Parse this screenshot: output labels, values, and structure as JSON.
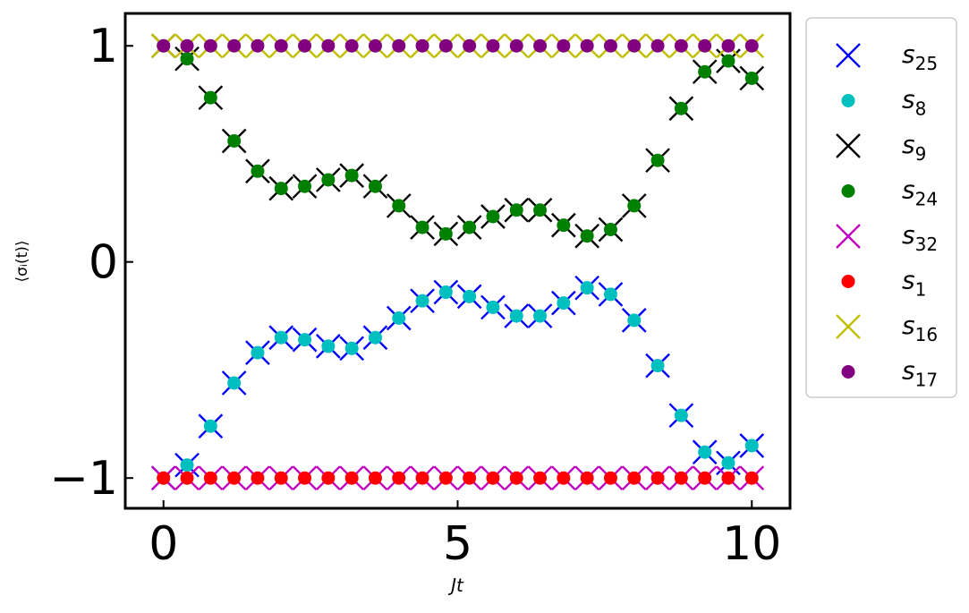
{
  "chart_data": {
    "type": "scatter",
    "xlabel": "Jt",
    "ylabel": "⟨σᵢ(t)⟩",
    "xlim": [
      -0.65,
      10.65
    ],
    "ylim": [
      -1.14,
      1.15
    ],
    "xticks": [
      0,
      5,
      10
    ],
    "xtick_labels": [
      "0",
      "5",
      "10"
    ],
    "yticks": [
      -1,
      0,
      1
    ],
    "ytick_labels": [
      "−1",
      "0",
      "1"
    ],
    "grid": false,
    "legend_position": "outside-right",
    "x": [
      0,
      0.4,
      0.8,
      1.2,
      1.6,
      2.0,
      2.4,
      2.8,
      3.2,
      3.6,
      4.0,
      4.4,
      4.8,
      5.2,
      5.6,
      6.0,
      6.4,
      6.8,
      7.2,
      7.6,
      8.0,
      8.4,
      8.8,
      9.2,
      9.6,
      10.0
    ],
    "series": [
      {
        "name": "s",
        "sub": "25",
        "marker": "x",
        "color": "#0000ff",
        "values": [
          -1.0,
          -0.94,
          -0.76,
          -0.56,
          -0.42,
          -0.35,
          -0.36,
          -0.39,
          -0.4,
          -0.35,
          -0.26,
          -0.18,
          -0.14,
          -0.16,
          -0.21,
          -0.25,
          -0.25,
          -0.19,
          -0.12,
          -0.15,
          -0.27,
          -0.48,
          -0.71,
          -0.88,
          -0.93,
          -0.85
        ]
      },
      {
        "name": "s",
        "sub": "8",
        "marker": "o",
        "color": "#00bfbf",
        "values": [
          -1.0,
          -0.94,
          -0.76,
          -0.56,
          -0.42,
          -0.35,
          -0.36,
          -0.39,
          -0.4,
          -0.35,
          -0.26,
          -0.18,
          -0.14,
          -0.16,
          -0.21,
          -0.25,
          -0.25,
          -0.19,
          -0.12,
          -0.15,
          -0.27,
          -0.48,
          -0.71,
          -0.88,
          -0.93,
          -0.85
        ]
      },
      {
        "name": "s",
        "sub": "9",
        "marker": "x",
        "color": "#000000",
        "values": [
          1.0,
          0.94,
          0.76,
          0.56,
          0.42,
          0.34,
          0.35,
          0.38,
          0.4,
          0.35,
          0.26,
          0.16,
          0.13,
          0.16,
          0.21,
          0.24,
          0.24,
          0.17,
          0.12,
          0.15,
          0.26,
          0.47,
          0.71,
          0.88,
          0.93,
          0.85
        ]
      },
      {
        "name": "s",
        "sub": "24",
        "marker": "o",
        "color": "#008000",
        "values": [
          1.0,
          0.94,
          0.76,
          0.56,
          0.42,
          0.34,
          0.35,
          0.38,
          0.4,
          0.35,
          0.26,
          0.16,
          0.13,
          0.16,
          0.21,
          0.24,
          0.24,
          0.17,
          0.12,
          0.15,
          0.26,
          0.47,
          0.71,
          0.88,
          0.93,
          0.85
        ]
      },
      {
        "name": "s",
        "sub": "32",
        "marker": "x",
        "color": "#bf00bf",
        "values": [
          -1,
          -1,
          -1,
          -1,
          -1,
          -1,
          -1,
          -1,
          -1,
          -1,
          -1,
          -1,
          -1,
          -1,
          -1,
          -1,
          -1,
          -1,
          -1,
          -1,
          -1,
          -1,
          -1,
          -1,
          -1,
          -1
        ]
      },
      {
        "name": "s",
        "sub": "1",
        "marker": "o",
        "color": "#ff0000",
        "values": [
          -1,
          -1,
          -1,
          -1,
          -1,
          -1,
          -1,
          -1,
          -1,
          -1,
          -1,
          -1,
          -1,
          -1,
          -1,
          -1,
          -1,
          -1,
          -1,
          -1,
          -1,
          -1,
          -1,
          -1,
          -1,
          -1
        ]
      },
      {
        "name": "s",
        "sub": "16",
        "marker": "x",
        "color": "#bfbf00",
        "values": [
          1,
          1,
          1,
          1,
          1,
          1,
          1,
          1,
          1,
          1,
          1,
          1,
          1,
          1,
          1,
          1,
          1,
          1,
          1,
          1,
          1,
          1,
          1,
          1,
          1,
          1
        ]
      },
      {
        "name": "s",
        "sub": "17",
        "marker": "o",
        "color": "#800080",
        "values": [
          1,
          1,
          1,
          1,
          1,
          1,
          1,
          1,
          1,
          1,
          1,
          1,
          1,
          1,
          1,
          1,
          1,
          1,
          1,
          1,
          1,
          1,
          1,
          1,
          1,
          1
        ]
      }
    ]
  }
}
